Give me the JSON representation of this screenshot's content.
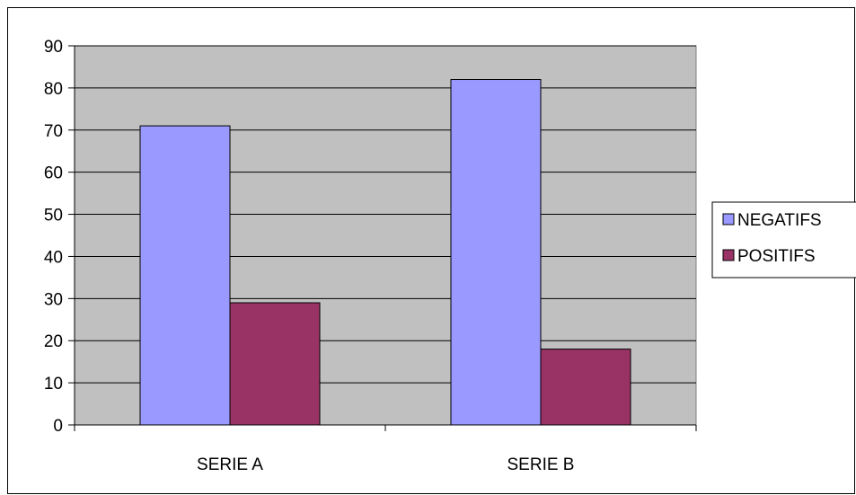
{
  "chart_data": {
    "type": "bar",
    "categories": [
      "SERIE A",
      "SERIE B"
    ],
    "series": [
      {
        "name": "NEGATIFS",
        "values": [
          71,
          82
        ],
        "color": "#9999ff"
      },
      {
        "name": "POSITIFS",
        "values": [
          29,
          18
        ],
        "color": "#993366"
      }
    ],
    "ylim": [
      0,
      90
    ],
    "yticks": [
      "0",
      "10",
      "20",
      "30",
      "40",
      "50",
      "60",
      "70",
      "80",
      "90"
    ],
    "grid": true,
    "plot_background": "#c0c0c0",
    "legend_position": "right"
  }
}
